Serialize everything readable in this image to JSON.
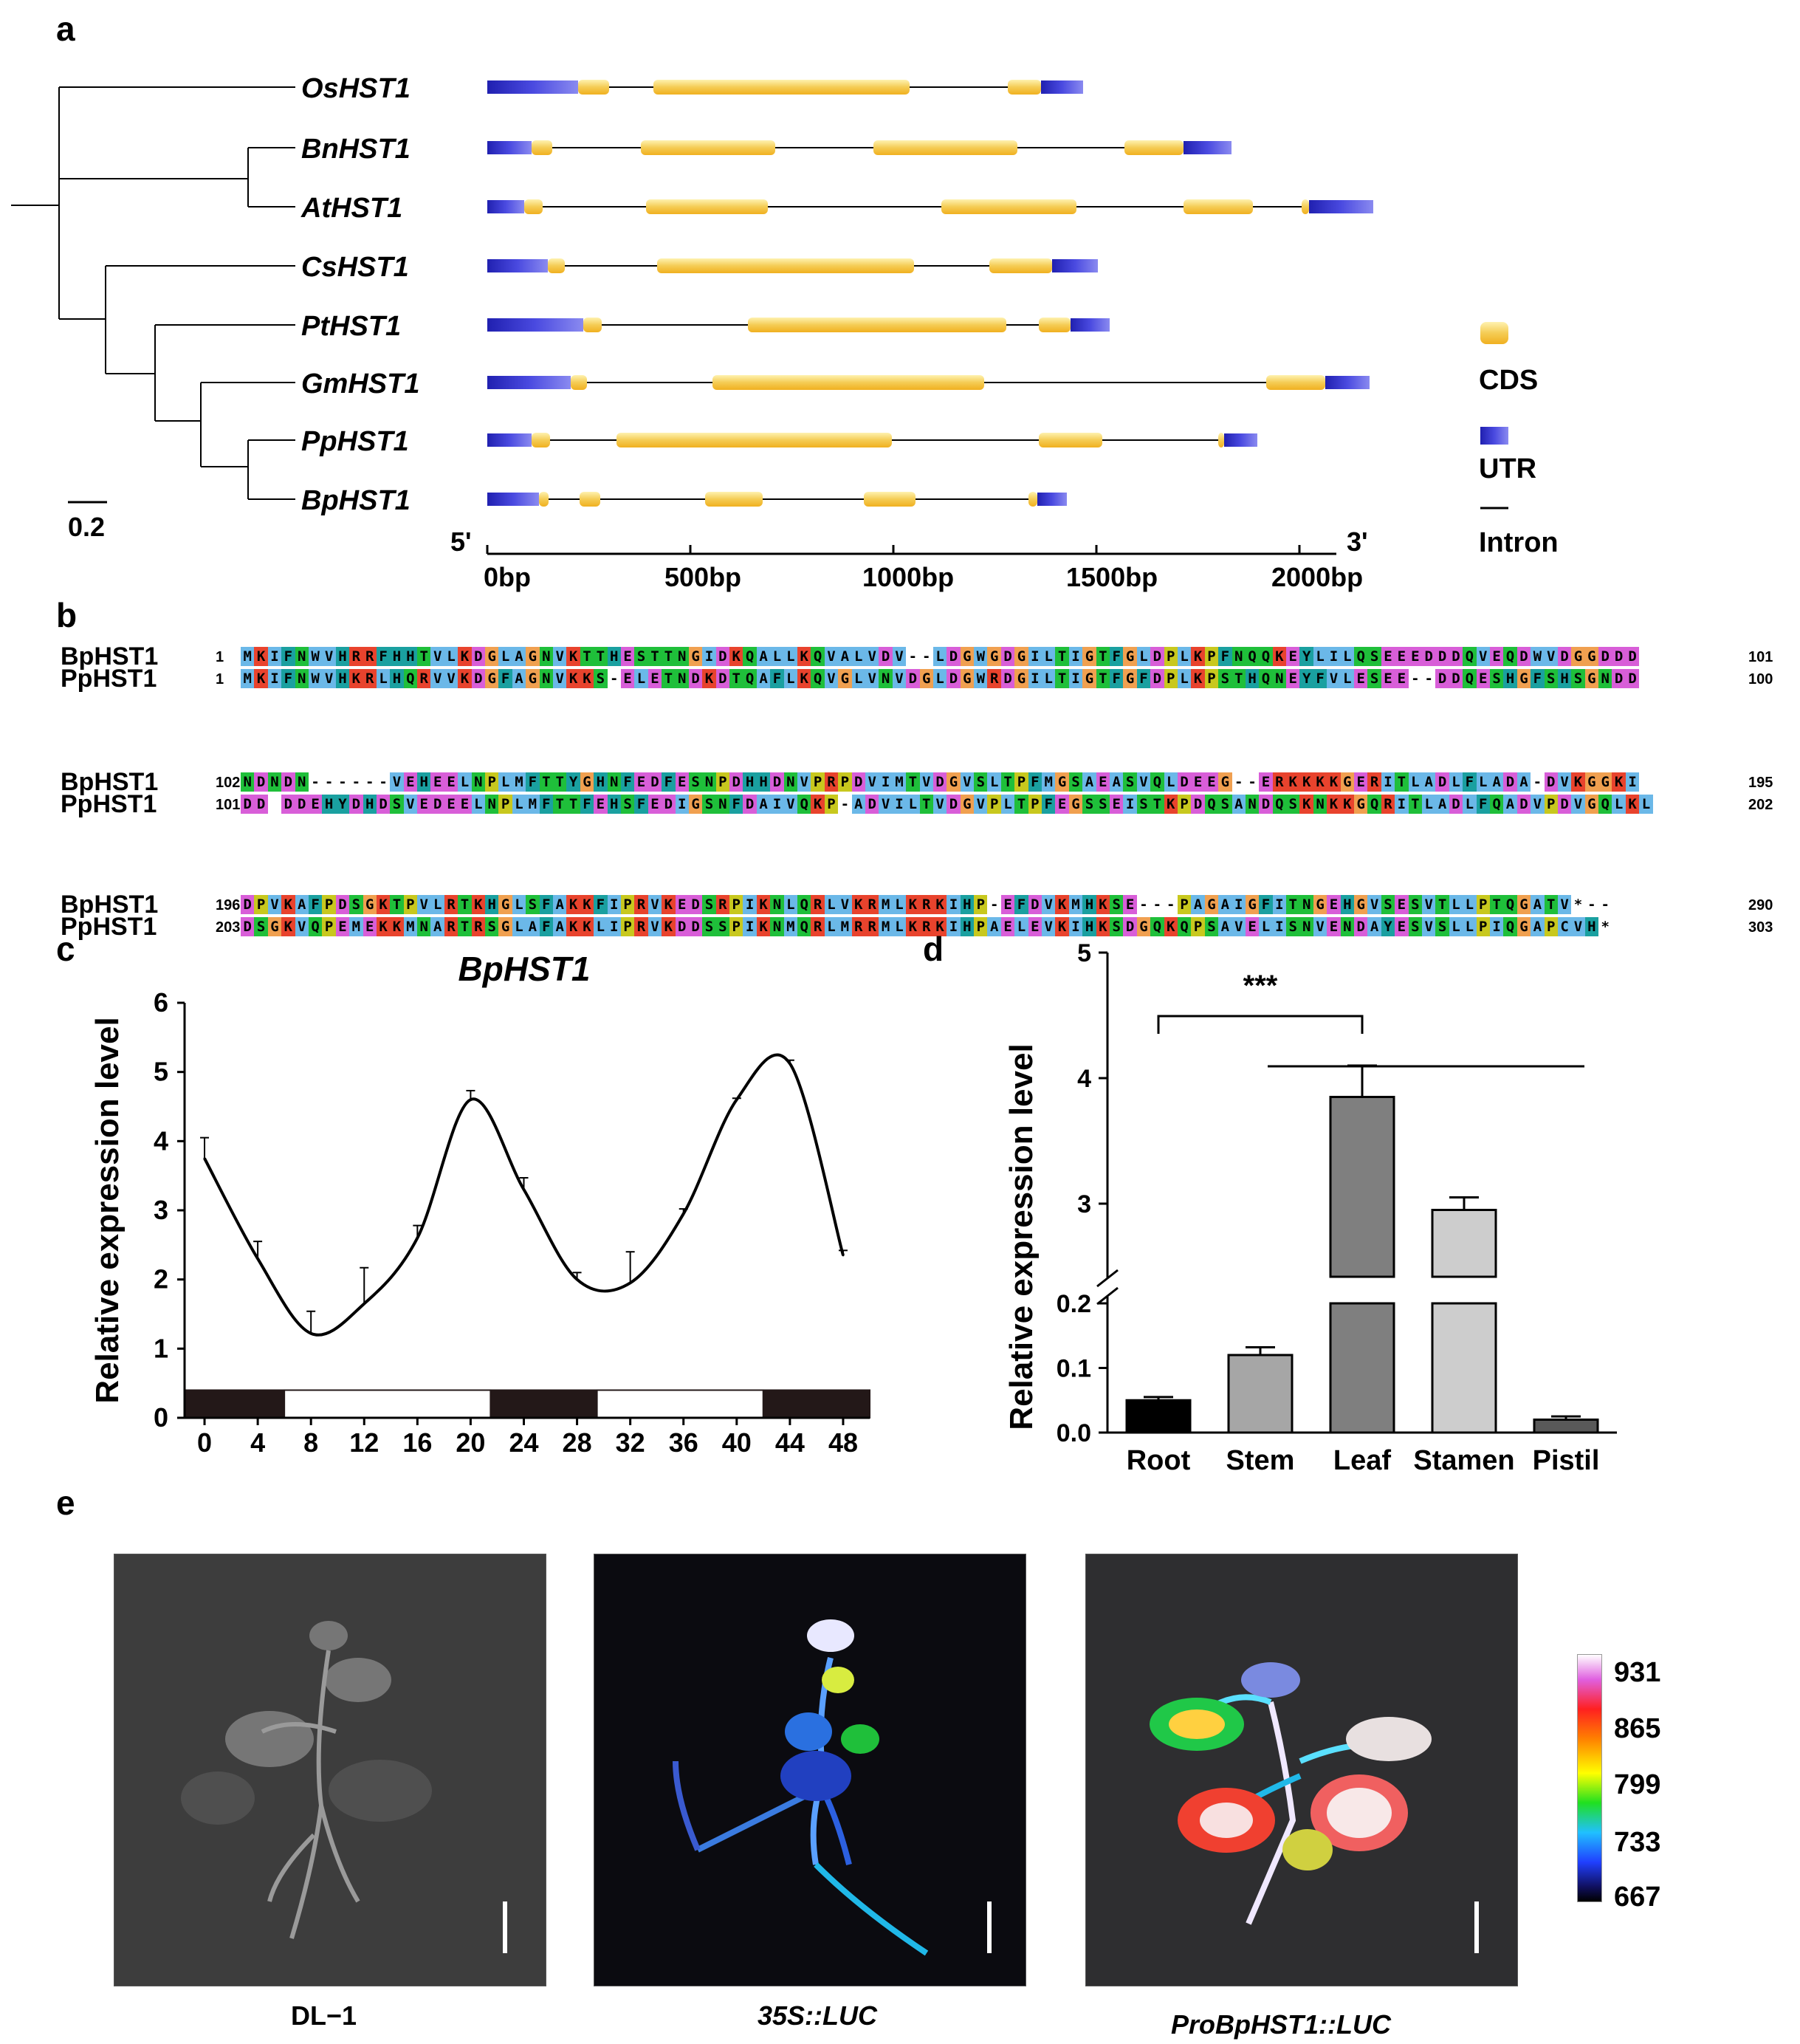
{
  "panels": {
    "a": "a",
    "b": "b",
    "c": "c",
    "d": "d",
    "e": "e"
  },
  "panel_a": {
    "genes": [
      "OsHST1",
      "BnHST1",
      "AtHST1",
      "CsHST1",
      "PtHST1",
      "GmHST1",
      "PpHST1",
      "BpHST1"
    ],
    "scale_bar": "0.2",
    "five_prime": "5'",
    "three_prime": "3'",
    "ruler_ticks": [
      "0bp",
      "500bp",
      "1000bp",
      "1500bp",
      "2000bp"
    ],
    "legend": {
      "cds": "CDS",
      "utr": "UTR",
      "intron": "Intron"
    },
    "colors": {
      "cds": "#f5cc55",
      "utr": "#2a2ab8",
      "line": "#000000"
    }
  },
  "panel_b": {
    "blocks": [
      {
        "names": [
          "BpHST1",
          "PpHST1"
        ],
        "starts": [
          "1",
          "1"
        ],
        "ends": [
          "101",
          "100"
        ],
        "seqs": [
          "MKIFNWVHRRFHHTVLKDGLAGNVKTTHESTTNGIDKQALLKQVALVDV--LDGWGDGILTIGTFGLDPLKPFNQQKEYLILQSEEEDDDQVEQDWVDGGDDD",
          "MKIFNWVHKRLHQRVVKDGFAGNVKKS-ELETNDKDTQAFLKQVGLVNVDGLDGWRDGILTIGTFGFDPLKPSTHQNEYFVLESEE--DDQESHGFSHSGNDD"
        ]
      },
      {
        "names": [
          "BpHST1",
          "PpHST1"
        ],
        "starts": [
          "102",
          "101"
        ],
        "ends": [
          "195",
          "202"
        ],
        "seqs": [
          "NDNDN------VEHEELNPLMFTTYGHNFEDFESNPDHHDNVPRPDVIMTVDGVSLTPFMGSAEASVQLDEEG--ERKKKKGERITLADLFLADA-DVKGGKI",
          "DD DDEHYDHDSVEDEELNPLMFTTFEHSFEDIGSNFDAIVQKP-ADVILTVDGVPLTPFEGSSEISTKPDQSANDQSKNKKGQRITLADLFQADVPDVGQLKL"
        ]
      },
      {
        "names": [
          "BpHST1",
          "PpHST1"
        ],
        "starts": [
          "196",
          "203"
        ],
        "ends": [
          "290",
          "303"
        ],
        "seqs": [
          "DPVKAFPDSGKTPVLRTKHGLSFAKKFIPRVKEDSRPIKNLQRLVKRMLKRKIHP-EFDVKMHKSE---PAGAIGFITNGEHGVSESVTLLPTQGATV*--",
          "DSGKVQPEMEKKMNARTRSGLAFAKKLIPRVKDDSSPIKNMQRLMRRMLKRKIHPAELEVKIHKSDGQKQPSAVELISNVENDAYESVSLLPIQGAPCVH*"
        ]
      }
    ],
    "residue_colors": {
      "hydrophobic": "#6bb8e8",
      "positive": "#e8432d",
      "negative": "#d85ed8",
      "polar": "#1fbf3a",
      "glycine": "#f0a050",
      "proline": "#c8c81e",
      "aromatic": "#1aa0a0"
    }
  },
  "panel_c": {
    "chart_data": {
      "type": "line",
      "title": "BpHST1",
      "ylabel": "Relative expression level",
      "xlabel": "",
      "x": [
        0,
        4,
        8,
        12,
        16,
        20,
        24,
        28,
        32,
        36,
        40,
        44,
        48
      ],
      "x_tick_labels": [
        "0",
        "4",
        "8",
        "12",
        "16",
        "20",
        "24",
        "28",
        "32",
        "36",
        "40",
        "44",
        "48"
      ],
      "y_tick_labels": [
        "0",
        "1",
        "2",
        "3",
        "4",
        "5",
        "6"
      ],
      "points": [
        {
          "x": 0,
          "y": 3.75,
          "err": 0.3
        },
        {
          "x": 4,
          "y": 2.3,
          "err": 0.25
        },
        {
          "x": 8,
          "y": 1.22,
          "err": 0.32
        },
        {
          "x": 12,
          "y": 1.65,
          "err": 0.52
        },
        {
          "x": 16,
          "y": 2.6,
          "err": 0.18
        },
        {
          "x": 20,
          "y": 4.6,
          "err": 0.13
        },
        {
          "x": 24,
          "y": 3.3,
          "err": 0.17
        },
        {
          "x": 28,
          "y": 2.0,
          "err": 0.1
        },
        {
          "x": 32,
          "y": 1.95,
          "err": 0.45
        },
        {
          "x": 36,
          "y": 2.95,
          "err": 0.07
        },
        {
          "x": 40,
          "y": 4.6,
          "err": 0.02
        },
        {
          "x": 44,
          "y": 5.12,
          "err": 0.05
        },
        {
          "x": 48,
          "y": 2.35,
          "err": 0.07
        }
      ],
      "ylim": [
        0,
        6
      ],
      "xlim": [
        -1.5,
        50
      ],
      "light_dark_bar": [
        {
          "from": -1.5,
          "to": 6,
          "state": "dark"
        },
        {
          "from": 6,
          "to": 21.5,
          "state": "light"
        },
        {
          "from": 21.5,
          "to": 29.5,
          "state": "dark"
        },
        {
          "from": 29.5,
          "to": 42,
          "state": "light"
        },
        {
          "from": 42,
          "to": 50,
          "state": "dark"
        }
      ]
    }
  },
  "panel_d": {
    "chart_data": {
      "type": "bar",
      "categories": [
        "Root",
        "Stem",
        "Leaf",
        "Stamen",
        "Pistil"
      ],
      "values": [
        0.05,
        0.12,
        3.85,
        2.95,
        0.02
      ],
      "errors": [
        0.005,
        0.012,
        0.25,
        0.1,
        0.005
      ],
      "colors": [
        "#000000",
        "#a6a6a6",
        "#7f7f7f",
        "#cdcdcd",
        "#595959"
      ],
      "ylabel": "Relative expression level",
      "xlabel": "",
      "broken_axis": {
        "lower": [
          0,
          0.2
        ],
        "upper": [
          2.5,
          5
        ]
      },
      "y_tick_labels_lower": [
        "0.0",
        "0.1",
        "0.2"
      ],
      "y_tick_labels_upper": [
        "3",
        "4",
        "5"
      ],
      "significance": "***"
    }
  },
  "panel_e": {
    "labels": [
      "DL−1",
      "35S::LUC",
      "ProBpHST1::LUC"
    ],
    "colorbar_ticks": [
      "931",
      "865",
      "799",
      "733",
      "667"
    ]
  }
}
